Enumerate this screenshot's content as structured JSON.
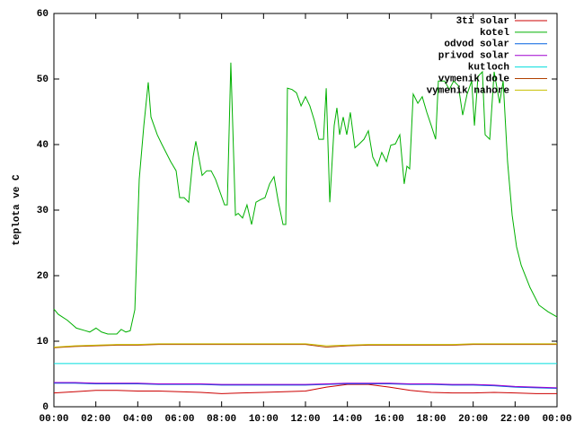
{
  "chart_data": {
    "type": "line",
    "ylabel": "teplota ve C",
    "xlim": [
      0,
      24
    ],
    "ylim": [
      0,
      60
    ],
    "xticks": [
      {
        "value": 0,
        "label": "00:00"
      },
      {
        "value": 2,
        "label": "02:00"
      },
      {
        "value": 4,
        "label": "04:00"
      },
      {
        "value": 6,
        "label": "06:00"
      },
      {
        "value": 8,
        "label": "08:00"
      },
      {
        "value": 10,
        "label": "10:00"
      },
      {
        "value": 12,
        "label": "12:00"
      },
      {
        "value": 14,
        "label": "14:00"
      },
      {
        "value": 16,
        "label": "16:00"
      },
      {
        "value": 18,
        "label": "18:00"
      },
      {
        "value": 20,
        "label": "20:00"
      },
      {
        "value": 22,
        "label": "22:00"
      },
      {
        "value": 24,
        "label": "00:00"
      }
    ],
    "yticks": [
      0,
      10,
      20,
      30,
      40,
      50,
      60
    ],
    "legend": "top-right",
    "x": [
      0,
      1,
      2,
      3,
      4,
      5,
      6,
      7,
      8,
      9,
      10,
      11,
      12,
      13,
      14,
      15,
      16,
      17,
      18,
      19,
      20,
      21,
      22,
      23,
      24
    ],
    "series": [
      {
        "name": "3ti solar",
        "color": "#cc0000",
        "values": [
          2.1,
          2.3,
          2.5,
          2.5,
          2.4,
          2.4,
          2.3,
          2.2,
          2,
          2.1,
          2.2,
          2.3,
          2.4,
          3,
          3.4,
          3.4,
          3,
          2.5,
          2.2,
          2.1,
          2.1,
          2.2,
          2.1,
          2,
          2
        ]
      },
      {
        "name": "kotel",
        "color": "#00b000",
        "x": [
          0,
          0.21,
          0.64,
          1.07,
          1.5,
          1.71,
          2.01,
          2.27,
          2.57,
          3,
          3.21,
          3.43,
          3.64,
          3.86,
          4.07,
          4.29,
          4.5,
          4.63,
          4.93,
          5.14,
          5.57,
          5.83,
          6,
          6.21,
          6.43,
          6.64,
          6.77,
          7.07,
          7.29,
          7.5,
          7.71,
          8.14,
          8.27,
          8.44,
          8.66,
          8.79,
          9,
          9.21,
          9.43,
          9.64,
          9.86,
          10.07,
          10.29,
          10.5,
          10.71,
          10.93,
          11.06,
          11.14,
          11.36,
          11.57,
          11.79,
          12,
          12.21,
          12.43,
          12.64,
          12.86,
          12.99,
          13.16,
          13.37,
          13.5,
          13.63,
          13.8,
          13.97,
          14.14,
          14.36,
          14.57,
          14.79,
          15,
          15.21,
          15.43,
          15.64,
          15.86,
          16.07,
          16.29,
          16.5,
          16.71,
          16.84,
          16.97,
          17.14,
          17.36,
          17.57,
          17.79,
          18,
          18.21,
          18.34,
          18.64,
          18.86,
          19.07,
          19.29,
          19.5,
          19.71,
          19.93,
          20.06,
          20.23,
          20.44,
          20.57,
          20.79,
          21,
          21.26,
          21.43,
          21.64,
          21.86,
          22.07,
          22.29,
          22.71,
          23.14,
          23.57,
          24
        ],
        "values": [
          14.9,
          14.1,
          13.2,
          12,
          11.6,
          11.4,
          12,
          11.4,
          11.1,
          11.1,
          11.8,
          11.4,
          11.6,
          14.8,
          34.7,
          42.9,
          49.5,
          44.2,
          41.5,
          40.1,
          37.4,
          36,
          31.9,
          31.9,
          31.2,
          38.1,
          40.5,
          35.3,
          36,
          36,
          34.7,
          30.8,
          30.8,
          52.5,
          29.2,
          29.5,
          28.8,
          30.8,
          27.8,
          31.2,
          31.6,
          31.9,
          34,
          35.1,
          31.2,
          27.8,
          27.8,
          48.6,
          48.4,
          47.9,
          45.9,
          47.3,
          45.9,
          43.6,
          40.8,
          40.8,
          48.6,
          31.2,
          42.9,
          45.6,
          41.5,
          44.2,
          41.5,
          44.9,
          39.5,
          40.1,
          40.8,
          42.1,
          38.1,
          36.7,
          38.8,
          37.4,
          39.9,
          40.1,
          41.5,
          34,
          36.7,
          36.3,
          47.7,
          46.3,
          47.3,
          44.9,
          42.9,
          40.8,
          49.7,
          49.7,
          48.4,
          49.7,
          49,
          44.5,
          47.7,
          49.7,
          42.9,
          50.4,
          51.1,
          41.5,
          40.8,
          51.1,
          46.3,
          49.7,
          37.4,
          29.2,
          24.4,
          21.6,
          18.2,
          15.5,
          14.5,
          13.7
        ]
      },
      {
        "name": "odvod solar",
        "color": "#0060e0",
        "values": [
          3.6,
          3.6,
          3.5,
          3.5,
          3.5,
          3.4,
          3.4,
          3.4,
          3.3,
          3.3,
          3.3,
          3.3,
          3.3,
          3.4,
          3.5,
          3.5,
          3.5,
          3.4,
          3.4,
          3.3,
          3.3,
          3.2,
          3,
          2.9,
          2.8
        ]
      },
      {
        "name": "privod solar",
        "color": "#a000d0",
        "values": [
          3.7,
          3.7,
          3.6,
          3.6,
          3.6,
          3.5,
          3.5,
          3.5,
          3.4,
          3.4,
          3.4,
          3.4,
          3.4,
          3.5,
          3.6,
          3.6,
          3.6,
          3.5,
          3.5,
          3.4,
          3.4,
          3.3,
          3.1,
          3,
          2.9
        ]
      },
      {
        "name": "kutloch",
        "color": "#00dddd",
        "values": [
          6.6,
          6.6,
          6.6,
          6.6,
          6.6,
          6.6,
          6.6,
          6.6,
          6.6,
          6.6,
          6.6,
          6.6,
          6.6,
          6.6,
          6.6,
          6.6,
          6.6,
          6.6,
          6.6,
          6.6,
          6.6,
          6.6,
          6.6,
          6.6,
          6.6
        ]
      },
      {
        "name": "vymenik dole",
        "color": "#b04000",
        "values": [
          9,
          9.2,
          9.3,
          9.4,
          9.4,
          9.5,
          9.5,
          9.5,
          9.5,
          9.5,
          9.5,
          9.5,
          9.5,
          9.1,
          9.3,
          9.4,
          9.4,
          9.4,
          9.4,
          9.4,
          9.5,
          9.5,
          9.5,
          9.5,
          9.5
        ]
      },
      {
        "name": "vymenik nahore",
        "color": "#c8c000",
        "values": [
          9.1,
          9.3,
          9.4,
          9.5,
          9.5,
          9.6,
          9.6,
          9.6,
          9.6,
          9.6,
          9.6,
          9.6,
          9.6,
          9.3,
          9.4,
          9.5,
          9.5,
          9.5,
          9.5,
          9.5,
          9.6,
          9.6,
          9.6,
          9.6,
          9.6
        ]
      }
    ]
  }
}
